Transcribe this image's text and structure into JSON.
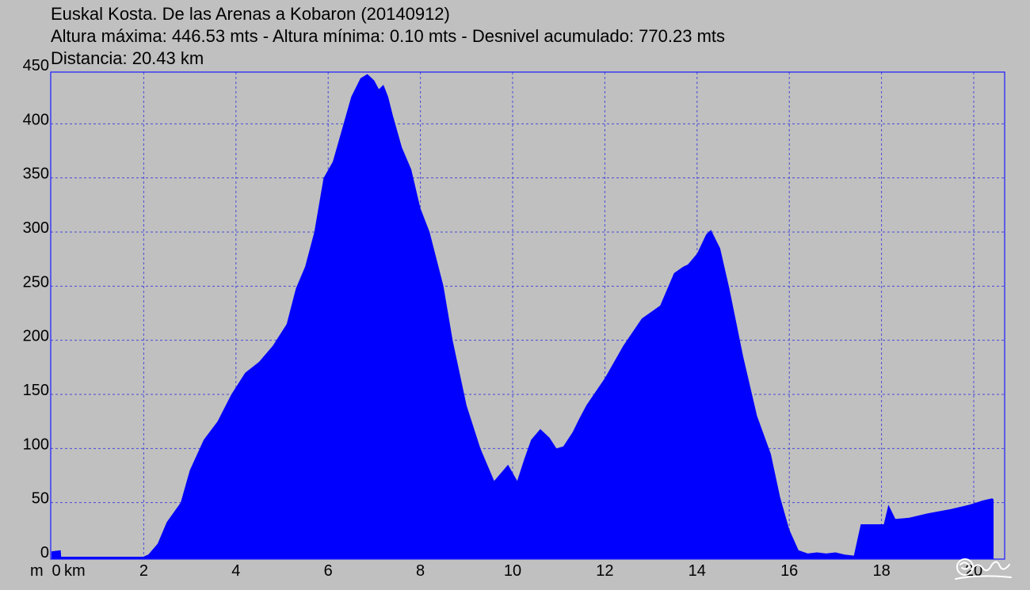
{
  "header": {
    "title": "Euskal Kosta. De las Arenas a Kobaron (20140912)",
    "stats": "Altura máxima: 446.53 mts - Altura mínima: 0.10 mts - Desnivel acumulado: 770.23 mts",
    "distance": "Distancia: 20.43 km"
  },
  "chart_data": {
    "type": "area",
    "title": "Euskal Kosta. De las Arenas a Kobaron (20140912)",
    "xlabel": "km",
    "ylabel": "m",
    "xlim": [
      0,
      20.7
    ],
    "ylim": [
      0,
      450
    ],
    "x_ticks": [
      "0",
      "2",
      "4",
      "6",
      "8",
      "10",
      "12",
      "14",
      "16",
      "18",
      "20"
    ],
    "y_ticks": [
      "0",
      "50",
      "100",
      "150",
      "200",
      "250",
      "300",
      "350",
      "400",
      "450"
    ],
    "x_tick_values": [
      0,
      2,
      4,
      6,
      8,
      10,
      12,
      14,
      16,
      18,
      20
    ],
    "y_tick_values": [
      0,
      50,
      100,
      150,
      200,
      250,
      300,
      350,
      400,
      450
    ],
    "grid": true,
    "colors": {
      "fill": "#0000ff",
      "plot_bg": "#c0c0c0",
      "frame": "#1a1aff",
      "grid": "#4a4ad8"
    },
    "x": [
      0,
      0.2,
      0.21,
      1.99,
      2.1,
      2.3,
      2.5,
      2.8,
      3.0,
      3.3,
      3.6,
      3.9,
      4.2,
      4.5,
      4.8,
      5.1,
      5.3,
      5.5,
      5.7,
      5.9,
      6.1,
      6.3,
      6.5,
      6.7,
      6.85,
      7.0,
      7.1,
      7.2,
      7.3,
      7.4,
      7.6,
      7.8,
      8.0,
      8.2,
      8.5,
      8.7,
      9.0,
      9.3,
      9.6,
      9.9,
      10.1,
      10.25,
      10.4,
      10.6,
      10.8,
      10.95,
      11.1,
      11.3,
      11.45,
      11.6,
      12.0,
      12.4,
      12.8,
      13.2,
      13.5,
      13.7,
      13.8,
      14.0,
      14.2,
      14.3,
      14.5,
      14.7,
      15.0,
      15.3,
      15.6,
      15.8,
      16.0,
      16.2,
      16.4,
      16.6,
      16.8,
      17.0,
      17.2,
      17.4,
      17.55,
      17.6,
      17.65,
      17.9,
      18.05,
      18.15,
      18.3,
      18.6,
      19.0,
      19.5,
      19.9,
      20.2,
      20.4,
      20.43
    ],
    "y": [
      5,
      6,
      0,
      0,
      2,
      12,
      32,
      50,
      80,
      108,
      125,
      150,
      170,
      180,
      195,
      215,
      248,
      268,
      300,
      350,
      365,
      395,
      425,
      442,
      446,
      440,
      432,
      436,
      425,
      408,
      378,
      358,
      322,
      300,
      250,
      200,
      140,
      100,
      70,
      85,
      70,
      90,
      108,
      118,
      110,
      100,
      102,
      115,
      128,
      140,
      165,
      195,
      220,
      232,
      262,
      268,
      270,
      280,
      298,
      302,
      285,
      248,
      185,
      130,
      95,
      55,
      25,
      6,
      3,
      4,
      3,
      4,
      2,
      1,
      30,
      30,
      30,
      30,
      30,
      48,
      35,
      36,
      40,
      44,
      48,
      52,
      54,
      53
    ]
  }
}
